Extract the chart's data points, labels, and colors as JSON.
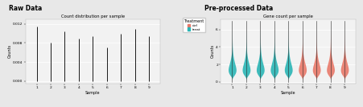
{
  "left_title": "Raw Data",
  "left_subtitle": "Count distribution per sample",
  "right_title": "Pre-processed Data",
  "right_subtitle": "Gene count per sample",
  "xlabel": "Sample",
  "ylabel_left": "Counts",
  "ylabel_right": "Counts",
  "samples": [
    "1",
    "2",
    "3",
    "4",
    "5",
    "6",
    "7",
    "8",
    "9"
  ],
  "n_samples": 9,
  "teal_color": "#2ab5b5",
  "salmon_color": "#e8796a",
  "teal_indices": [
    0,
    1,
    2,
    3,
    4
  ],
  "salmon_indices": [
    5,
    6,
    7,
    8
  ],
  "legend_label_teal": "treat",
  "legend_label_salmon": "ctrl",
  "legend_title": "Treatment",
  "bg_color": "#e8e8e8",
  "panel_bg": "#f2f2f2",
  "grid_color": "#ffffff",
  "ylim_left": [
    -0.0005,
    0.013
  ],
  "ylim_right": [
    -0.2,
    7.2
  ],
  "yticks_left": [
    0.0,
    0.004,
    0.008,
    0.012
  ],
  "yticks_right": [
    0,
    2,
    4,
    6
  ],
  "raw_heights": [
    0.0115,
    0.008,
    0.0105,
    0.009,
    0.0095,
    0.007,
    0.01,
    0.011,
    0.0095
  ],
  "font_size_title": 5.5,
  "font_size_subtitle": 3.8,
  "font_size_axis": 3.5,
  "font_size_tick": 3.2,
  "font_size_legend_title": 3.5,
  "font_size_legend": 3.2
}
